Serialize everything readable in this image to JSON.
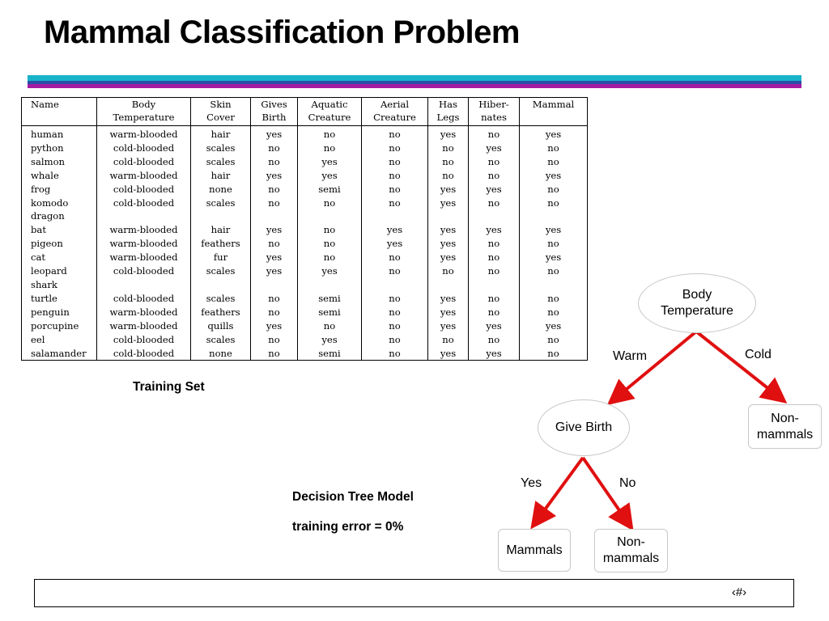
{
  "slide": {
    "title": "Mammal Classification Problem",
    "training_set_label": "Training Set",
    "model_label": "Decision Tree Model",
    "error_label": "training error = 0%",
    "page_number": "‹#›",
    "accent_colors": [
      "#19b3c9",
      "#2a4fa8",
      "#a51aa3"
    ],
    "edge_color": "#e01010"
  },
  "table": {
    "headers": [
      "Name",
      "Body\nTemperature",
      "Skin\nCover",
      "Gives\nBirth",
      "Aquatic\nCreature",
      "Aerial\nCreature",
      "Has\nLegs",
      "Hiber-\nnates",
      "Mammal"
    ],
    "rows": [
      [
        "human",
        "warm-blooded",
        "hair",
        "yes",
        "no",
        "no",
        "yes",
        "no",
        "yes"
      ],
      [
        "python",
        "cold-blooded",
        "scales",
        "no",
        "no",
        "no",
        "no",
        "yes",
        "no"
      ],
      [
        "salmon",
        "cold-blooded",
        "scales",
        "no",
        "yes",
        "no",
        "no",
        "no",
        "no"
      ],
      [
        "whale",
        "warm-blooded",
        "hair",
        "yes",
        "yes",
        "no",
        "no",
        "no",
        "yes"
      ],
      [
        "frog",
        "cold-blooded",
        "none",
        "no",
        "semi",
        "no",
        "yes",
        "yes",
        "no"
      ],
      [
        "komodo",
        "cold-blooded",
        "scales",
        "no",
        "no",
        "no",
        "yes",
        "no",
        "no"
      ],
      [
        "dragon",
        "",
        "",
        "",
        "",
        "",
        "",
        "",
        ""
      ],
      [
        "bat",
        "warm-blooded",
        "hair",
        "yes",
        "no",
        "yes",
        "yes",
        "yes",
        "yes"
      ],
      [
        "pigeon",
        "warm-blooded",
        "feathers",
        "no",
        "no",
        "yes",
        "yes",
        "no",
        "no"
      ],
      [
        "cat",
        "warm-blooded",
        "fur",
        "yes",
        "no",
        "no",
        "yes",
        "no",
        "yes"
      ],
      [
        "leopard",
        "cold-blooded",
        "scales",
        "yes",
        "yes",
        "no",
        "no",
        "no",
        "no"
      ],
      [
        "shark",
        "",
        "",
        "",
        "",
        "",
        "",
        "",
        ""
      ],
      [
        "turtle",
        "cold-blooded",
        "scales",
        "no",
        "semi",
        "no",
        "yes",
        "no",
        "no"
      ],
      [
        "penguin",
        "warm-blooded",
        "feathers",
        "no",
        "semi",
        "no",
        "yes",
        "no",
        "no"
      ],
      [
        "porcupine",
        "warm-blooded",
        "quills",
        "yes",
        "no",
        "no",
        "yes",
        "yes",
        "yes"
      ],
      [
        "eel",
        "cold-blooded",
        "scales",
        "no",
        "yes",
        "no",
        "no",
        "no",
        "no"
      ],
      [
        "salamander",
        "cold-blooded",
        "none",
        "no",
        "semi",
        "no",
        "yes",
        "yes",
        "no"
      ]
    ]
  },
  "tree": {
    "root": "Body\nTemperature",
    "warm_label": "Warm",
    "cold_label": "Cold",
    "give_birth": "Give Birth",
    "non_mammals_right": "Non-\nmammals",
    "yes_label": "Yes",
    "no_label": "No",
    "mammals": "Mammals",
    "non_mammals_bottom": "Non-\nmammals"
  }
}
